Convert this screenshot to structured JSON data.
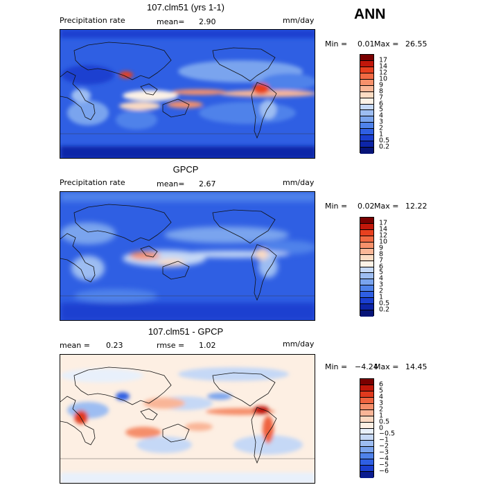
{
  "season": "ANN",
  "panels": [
    {
      "title": "107.clm51 (yrs 1-1)",
      "left_label": "Precipitation rate",
      "stat1_label": "mean=",
      "stat1_value": "2.90",
      "stat2_label": "",
      "stat2_value": "",
      "units": "mm/day",
      "min_label": "Min =",
      "min_value": "0.01",
      "max_label": "Max =",
      "max_value": "26.55",
      "levels": [
        "17",
        "14",
        "12",
        "10",
        "9",
        "8",
        "7",
        "6",
        "5",
        "4",
        "3",
        "2",
        "1",
        "0.5",
        "0.2"
      ],
      "colors": [
        "#7a0000",
        "#c1170a",
        "#e8401f",
        "#f26a43",
        "#f7916b",
        "#fab797",
        "#fcdcc3",
        "#fdf2e6",
        "#c5d8f6",
        "#9dbdf2",
        "#7aa4ee",
        "#4f82ea",
        "#2f5fe3",
        "#1b3fd0",
        "#0d25a8",
        "#071478"
      ]
    },
    {
      "title": "GPCP",
      "left_label": "Precipitation rate",
      "stat1_label": "mean=",
      "stat1_value": "2.67",
      "stat2_label": "",
      "stat2_value": "",
      "units": "mm/day",
      "min_label": "Min =",
      "min_value": "0.02",
      "max_label": "Max =",
      "max_value": "12.22",
      "levels": [
        "17",
        "14",
        "12",
        "10",
        "9",
        "8",
        "7",
        "6",
        "5",
        "4",
        "3",
        "2",
        "1",
        "0.5",
        "0.2"
      ],
      "colors": [
        "#7a0000",
        "#c1170a",
        "#e8401f",
        "#f26a43",
        "#f7916b",
        "#fab797",
        "#fcdcc3",
        "#fdf2e6",
        "#c5d8f6",
        "#9dbdf2",
        "#7aa4ee",
        "#4f82ea",
        "#2f5fe3",
        "#1b3fd0",
        "#0d25a8",
        "#071478"
      ]
    },
    {
      "title": "107.clm51 - GPCP",
      "left_label": "",
      "stat1_label": "mean =",
      "stat1_value": "0.23",
      "stat2_label": "rmse =",
      "stat2_value": "1.02",
      "units": "mm/day",
      "min_label": "Min =",
      "min_value": "−4.24",
      "max_label": "Max =",
      "max_value": "14.45",
      "levels": [
        "6",
        "5",
        "4",
        "3",
        "2",
        "1",
        "0.5",
        "0",
        "−0.5",
        "−1",
        "−2",
        "−3",
        "−4",
        "−5",
        "−6"
      ],
      "colors": [
        "#7a0000",
        "#c1170a",
        "#e03a1e",
        "#ef6440",
        "#f58e6a",
        "#f9b597",
        "#fcd9c2",
        "#fdefe3",
        "#e8f0fb",
        "#c5d8f6",
        "#9dbdf2",
        "#7aa4ee",
        "#4f82ea",
        "#2f5fe3",
        "#1b3fd0",
        "#0b1c90"
      ]
    }
  ]
}
